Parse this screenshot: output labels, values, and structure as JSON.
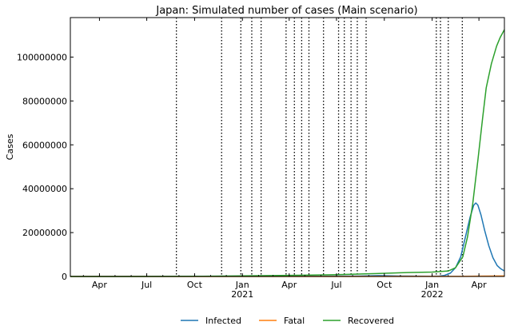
{
  "chart_data": {
    "type": "line",
    "title": "Japan: Simulated number of cases (Main scenario)",
    "xlabel": "",
    "ylabel": "Cases",
    "x_axis": {
      "type": "date",
      "range": [
        "2020-02-05",
        "2022-05-20"
      ],
      "ticks": [
        {
          "date": "2020-04-01",
          "label": "Apr",
          "sublabel": ""
        },
        {
          "date": "2020-07-01",
          "label": "Jul",
          "sublabel": ""
        },
        {
          "date": "2020-10-01",
          "label": "Oct",
          "sublabel": ""
        },
        {
          "date": "2021-01-01",
          "label": "Jan",
          "sublabel": "2021"
        },
        {
          "date": "2021-04-01",
          "label": "Apr",
          "sublabel": ""
        },
        {
          "date": "2021-07-01",
          "label": "Jul",
          "sublabel": ""
        },
        {
          "date": "2021-10-01",
          "label": "Oct",
          "sublabel": ""
        },
        {
          "date": "2022-01-01",
          "label": "Jan",
          "sublabel": "2022"
        },
        {
          "date": "2022-04-01",
          "label": "Apr",
          "sublabel": ""
        }
      ]
    },
    "y_axis": {
      "range": [
        0,
        118000000
      ],
      "ticks": [
        {
          "value": 0,
          "label": "0"
        },
        {
          "value": 20000000,
          "label": "20000000"
        },
        {
          "value": 40000000,
          "label": "40000000"
        },
        {
          "value": 60000000,
          "label": "60000000"
        },
        {
          "value": 80000000,
          "label": "80000000"
        },
        {
          "value": 100000000,
          "label": "100000000"
        }
      ]
    },
    "grid": false,
    "legend": {
      "placement": "bottom-center"
    },
    "vlines": [
      "2020-08-27",
      "2020-11-22",
      "2020-12-29",
      "2021-01-19",
      "2021-02-06",
      "2021-03-26",
      "2021-04-11",
      "2021-04-25",
      "2021-05-09",
      "2021-06-06",
      "2021-07-05",
      "2021-07-16",
      "2021-07-29",
      "2021-08-10",
      "2021-08-27",
      "2022-01-09",
      "2022-01-17",
      "2022-02-01",
      "2022-02-28"
    ],
    "series": [
      {
        "name": "Infected",
        "color": "#1f77b4",
        "points": [
          [
            "2020-02-05",
            0
          ],
          [
            "2020-08-01",
            20000
          ],
          [
            "2021-01-15",
            60000
          ],
          [
            "2021-05-15",
            90000
          ],
          [
            "2021-08-15",
            200000
          ],
          [
            "2021-09-20",
            400000
          ],
          [
            "2021-11-01",
            200000
          ],
          [
            "2022-01-01",
            100000
          ],
          [
            "2022-01-15",
            200000
          ],
          [
            "2022-01-25",
            500000
          ],
          [
            "2022-02-05",
            1500000
          ],
          [
            "2022-02-15",
            4000000
          ],
          [
            "2022-02-25",
            9000000
          ],
          [
            "2022-03-05",
            17000000
          ],
          [
            "2022-03-15",
            27000000
          ],
          [
            "2022-03-22",
            32500000
          ],
          [
            "2022-03-26",
            33500000
          ],
          [
            "2022-03-30",
            32500000
          ],
          [
            "2022-04-05",
            28000000
          ],
          [
            "2022-04-12",
            21000000
          ],
          [
            "2022-04-20",
            14000000
          ],
          [
            "2022-04-28",
            8500000
          ],
          [
            "2022-05-06",
            5000000
          ],
          [
            "2022-05-13",
            3500000
          ],
          [
            "2022-05-20",
            2500000
          ]
        ]
      },
      {
        "name": "Fatal",
        "color": "#ff7f0e",
        "points": [
          [
            "2020-02-05",
            0
          ],
          [
            "2021-06-01",
            20000
          ],
          [
            "2022-01-01",
            30000
          ],
          [
            "2022-03-01",
            60000
          ],
          [
            "2022-04-01",
            150000
          ],
          [
            "2022-05-20",
            230000
          ]
        ]
      },
      {
        "name": "Recovered",
        "color": "#2ca02c",
        "points": [
          [
            "2020-02-05",
            0
          ],
          [
            "2020-06-01",
            20000
          ],
          [
            "2020-10-01",
            80000
          ],
          [
            "2021-01-01",
            250000
          ],
          [
            "2021-04-01",
            500000
          ],
          [
            "2021-07-01",
            800000
          ],
          [
            "2021-09-15",
            1300000
          ],
          [
            "2021-11-01",
            1700000
          ],
          [
            "2022-01-01",
            2000000
          ],
          [
            "2022-02-01",
            2500000
          ],
          [
            "2022-02-15",
            4000000
          ],
          [
            "2022-03-01",
            9000000
          ],
          [
            "2022-03-10",
            18000000
          ],
          [
            "2022-03-20",
            33000000
          ],
          [
            "2022-03-30",
            53000000
          ],
          [
            "2022-04-08",
            72000000
          ],
          [
            "2022-04-15",
            86000000
          ],
          [
            "2022-04-25",
            97000000
          ],
          [
            "2022-05-05",
            105000000
          ],
          [
            "2022-05-12",
            109000000
          ],
          [
            "2022-05-20",
            112500000
          ]
        ]
      }
    ]
  }
}
